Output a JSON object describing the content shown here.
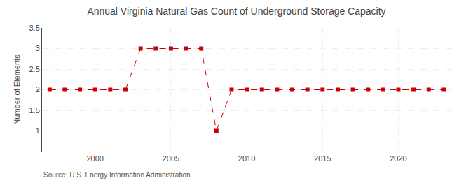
{
  "chart_data": {
    "type": "line",
    "title": "Annual Virginia Natural Gas Count of Underground Storage Capacity",
    "ylabel": "Number of Elements",
    "annotations": [
      "Source: U.S. Energy Information Administration"
    ],
    "x": [
      1997,
      1998,
      1999,
      2000,
      2001,
      2002,
      2003,
      2004,
      2005,
      2006,
      2007,
      2008,
      2009,
      2010,
      2011,
      2012,
      2013,
      2014,
      2015,
      2016,
      2017,
      2018,
      2019,
      2020,
      2021,
      2022,
      2023
    ],
    "values": [
      2,
      2,
      2,
      2,
      2,
      2,
      3,
      3,
      3,
      3,
      3,
      1,
      2,
      2,
      2,
      2,
      2,
      2,
      2,
      2,
      2,
      2,
      2,
      2,
      2,
      2,
      2
    ],
    "color": "#cc0000",
    "marker": "square",
    "line_style": "dashed",
    "xlim": [
      1996.5,
      2024.0
    ],
    "xticks": [
      2000,
      2005,
      2010,
      2015,
      2020
    ],
    "ylim": [
      0.5,
      3.5
    ],
    "yticks": [
      1,
      1.5,
      2,
      2.5,
      3,
      3.5
    ],
    "grid": true
  }
}
